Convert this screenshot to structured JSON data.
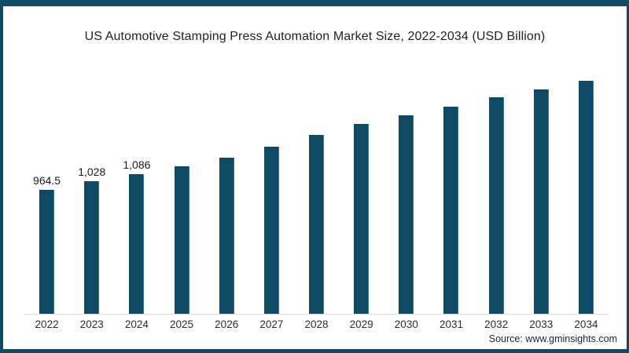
{
  "title": "US Automotive Stamping Press Automation Market Size, 2022-2034 (USD Billion)",
  "source": "Source: www.gminsights.com",
  "colors": {
    "bar": "#0e4a63",
    "frame_border": "#0e4a63",
    "axis_line": "#d9d9d9"
  },
  "chart_data": {
    "type": "bar",
    "title": "US Automotive Stamping Press Automation Market Size, 2022-2034 (USD Billion)",
    "categories": [
      "2022",
      "2023",
      "2024",
      "2025",
      "2026",
      "2027",
      "2028",
      "2029",
      "2030",
      "2031",
      "2032",
      "2033",
      "2034"
    ],
    "values": [
      964.5,
      1028,
      1086,
      1147,
      1213,
      1297,
      1388,
      1472,
      1541,
      1607,
      1679,
      1744,
      1810
    ],
    "data_labels": [
      "964.5",
      "1,028",
      "1,086",
      "",
      "",
      "",
      "",
      "",
      "",
      "",
      "",
      "",
      ""
    ],
    "xlabel": "",
    "ylabel": "",
    "ylim": [
      0,
      1900
    ],
    "grid": false,
    "legend": "none",
    "bar_color": "#0e4a63"
  }
}
